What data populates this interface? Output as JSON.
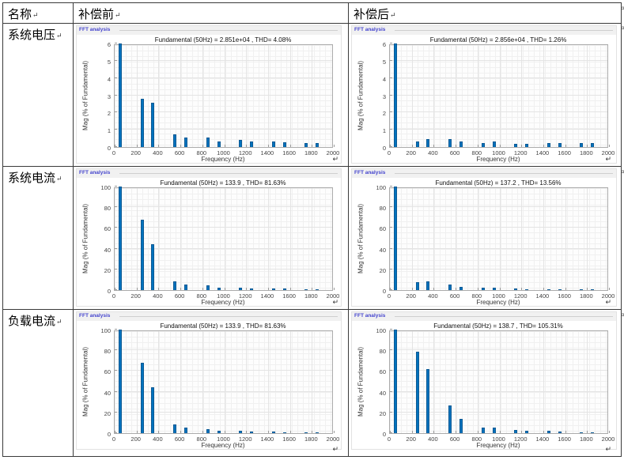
{
  "colors": {
    "bar_fill": "#0072BD",
    "bar_edge": "#0d5a94",
    "fft_label": "#4343cd",
    "table_border": "#3a3a3a",
    "strip_bg": "#f1f1f1",
    "grid_major": "#e4e4e4"
  },
  "marks": {
    "end_of_cell": "↵",
    "end_of_row": "¤"
  },
  "table": {
    "headers": [
      {
        "label": "名称"
      },
      {
        "label": "补偿前"
      },
      {
        "label": "补偿后"
      }
    ],
    "rows": [
      {
        "label": "系统电压"
      },
      {
        "label": "系统电流"
      },
      {
        "label": "负载电流"
      }
    ]
  },
  "chart_data": [
    {
      "type": "bar",
      "panel_label": "FFT analysis",
      "title": "Fundamental (50Hz) = 2.851e+04 , THD= 4.08%",
      "xlabel": "Frequency (Hz)",
      "ylabel": "Mag (% of Fundamental)",
      "xlim": [
        0,
        2000
      ],
      "ylim": [
        0,
        6
      ],
      "xticks": [
        0,
        200,
        400,
        600,
        800,
        1000,
        1200,
        1400,
        1600,
        1800,
        2000
      ],
      "yticks": [
        0,
        1,
        2,
        3,
        4,
        5,
        6
      ],
      "grid": true,
      "legend_position": "none",
      "x": [
        50,
        250,
        350,
        550,
        650,
        850,
        950,
        1150,
        1250,
        1450,
        1550,
        1750,
        1850
      ],
      "values": [
        6,
        2.8,
        2.55,
        0.72,
        0.55,
        0.55,
        0.33,
        0.42,
        0.32,
        0.3,
        0.28,
        0.22,
        0.23
      ]
    },
    {
      "type": "bar",
      "panel_label": "FFT analysis",
      "title": "Fundamental (50Hz) = 2.856e+04 , THD= 1.26%",
      "xlabel": "Frequency (Hz)",
      "ylabel": "Mag (% of Fundamental)",
      "xlim": [
        0,
        2000
      ],
      "ylim": [
        0,
        6
      ],
      "xticks": [
        0,
        200,
        400,
        600,
        800,
        1000,
        1200,
        1400,
        1600,
        1800,
        2000
      ],
      "yticks": [
        0,
        1,
        2,
        3,
        4,
        5,
        6
      ],
      "grid": true,
      "legend_position": "none",
      "x": [
        50,
        250,
        350,
        550,
        650,
        850,
        950,
        1150,
        1250,
        1450,
        1550,
        1750,
        1850
      ],
      "values": [
        6,
        0.32,
        0.46,
        0.47,
        0.32,
        0.22,
        0.3,
        0.2,
        0.2,
        0.24,
        0.23,
        0.21,
        0.24
      ]
    },
    {
      "type": "bar",
      "panel_label": "FFT analysis",
      "title": "Fundamental (50Hz) = 133.9 , THD= 81.63%",
      "xlabel": "Frequency (Hz)",
      "ylabel": "Mag (% of Fundamental)",
      "xlim": [
        0,
        2000
      ],
      "ylim": [
        0,
        100
      ],
      "xticks": [
        0,
        200,
        400,
        600,
        800,
        1000,
        1200,
        1400,
        1600,
        1800,
        2000
      ],
      "yticks": [
        0,
        20,
        40,
        60,
        80,
        100
      ],
      "grid": true,
      "legend_position": "none",
      "x": [
        50,
        250,
        350,
        550,
        650,
        850,
        950,
        1150,
        1250,
        1450,
        1550,
        1750,
        1850
      ],
      "values": [
        100,
        68,
        44.5,
        8.5,
        5,
        4.2,
        2.5,
        2.5,
        1.8,
        1.5,
        1.3,
        0.8,
        0.9
      ]
    },
    {
      "type": "bar",
      "panel_label": "FFT analysis",
      "title": "Fundamental (50Hz) = 137.2 , THD= 13.56%",
      "xlabel": "Frequency (Hz)",
      "ylabel": "Mag (% of Fundamental)",
      "xlim": [
        0,
        2000
      ],
      "ylim": [
        0,
        100
      ],
      "xticks": [
        0,
        200,
        400,
        600,
        800,
        1000,
        1200,
        1400,
        1600,
        1800,
        2000
      ],
      "yticks": [
        0,
        20,
        40,
        60,
        80,
        100
      ],
      "grid": true,
      "legend_position": "none",
      "x": [
        50,
        250,
        350,
        550,
        650,
        850,
        950,
        1150,
        1250,
        1450,
        1550,
        1750,
        1850
      ],
      "values": [
        100,
        7.5,
        8.2,
        5.5,
        3.2,
        2,
        2.3,
        1.6,
        1,
        1,
        1,
        0.8,
        1
      ]
    },
    {
      "type": "bar",
      "panel_label": "FFT analysis",
      "title": "Fundamental (50Hz) = 133.9 , THD= 81.63%",
      "xlabel": "Frequency (Hz)",
      "ylabel": "Mag (% of Fundamental)",
      "xlim": [
        0,
        2000
      ],
      "ylim": [
        0,
        100
      ],
      "xticks": [
        0,
        200,
        400,
        600,
        800,
        1000,
        1200,
        1400,
        1600,
        1800,
        2000
      ],
      "yticks": [
        0,
        20,
        40,
        60,
        80,
        100
      ],
      "grid": true,
      "legend_position": "none",
      "x": [
        50,
        250,
        350,
        550,
        650,
        850,
        950,
        1150,
        1250,
        1450,
        1550,
        1750,
        1850
      ],
      "values": [
        100,
        68,
        44,
        8.5,
        5,
        4,
        2.5,
        2.5,
        1.8,
        1.5,
        1,
        0.8,
        0.9
      ]
    },
    {
      "type": "bar",
      "panel_label": "FFT analysis",
      "title": "Fundamental (50Hz) = 138.7 , THD= 105.31%",
      "xlabel": "Frequency (Hz)",
      "ylabel": "Mag (% of Fundamental)",
      "xlim": [
        0,
        2000
      ],
      "ylim": [
        0,
        100
      ],
      "xticks": [
        0,
        200,
        400,
        600,
        800,
        1000,
        1200,
        1400,
        1600,
        1800,
        2000
      ],
      "yticks": [
        0,
        20,
        40,
        60,
        80,
        100
      ],
      "grid": true,
      "legend_position": "none",
      "x": [
        50,
        250,
        350,
        550,
        650,
        850,
        950,
        1150,
        1250,
        1450,
        1550,
        1750,
        1850
      ],
      "values": [
        100,
        79,
        62,
        27,
        14,
        5,
        5.5,
        3,
        2,
        2,
        1.5,
        1,
        1
      ]
    }
  ]
}
